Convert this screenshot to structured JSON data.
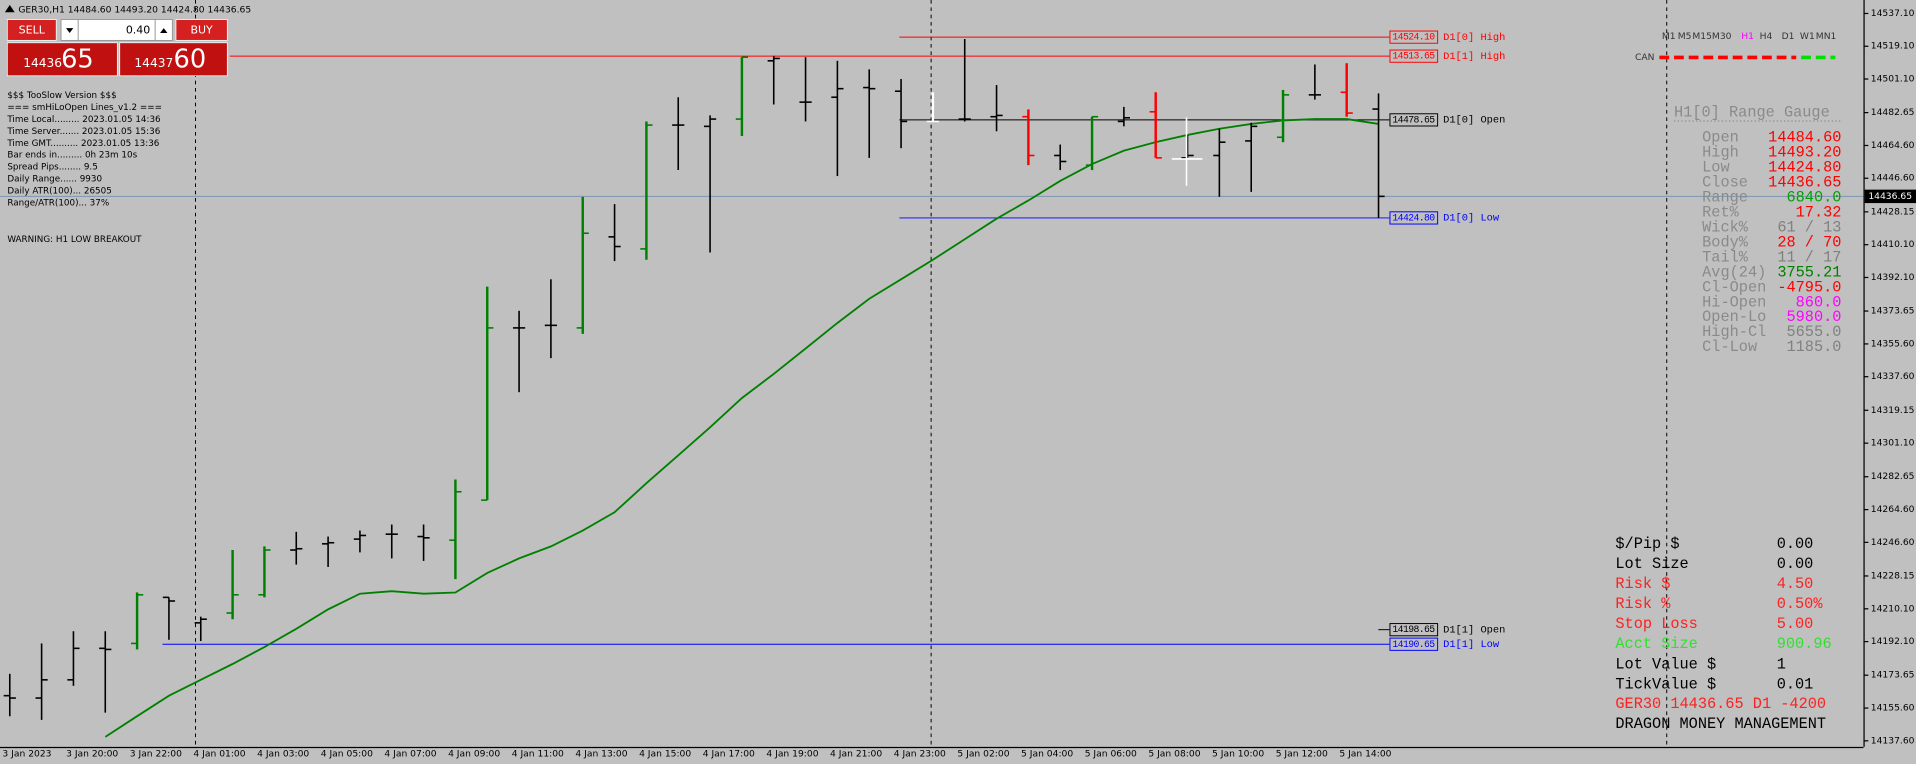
{
  "header": {
    "title": "GER30,H1  14484.60 14493.20 14424.80 14436.65"
  },
  "trade_panel": {
    "sell_label": "SELL",
    "buy_label": "BUY",
    "lot": "0.40",
    "bid_main": "14436",
    "bid_pips": "65",
    "ask_main": "14437",
    "ask_pips": "60"
  },
  "info_lines": [
    "$$$ TooSlow Version $$$",
    "=== smHiLoOpen Lines_v1.2 ===",
    "Time Local......... 2023.01.05 14:36",
    "Time Server....... 2023.01.05 15:36",
    "Time GMT.......... 2023.01.05 13:36",
    "Bar ends in......... 0h 23m 10s",
    "Spread Pips........ 9.5",
    "Daily Range...... 9930",
    "Daily ATR(100)... 26505",
    "Range/ATR(100)... 37%"
  ],
  "warning": "WARNING: H1 LOW BREAKOUT",
  "timeframes": {
    "items": [
      "M1",
      "M5",
      "M15",
      "M30",
      "H1",
      "H4",
      "D1",
      "W1",
      "MN1"
    ],
    "active": "H1"
  },
  "can_label": "CAN",
  "chart_data": {
    "type": "ohlc",
    "categories": [
      "3 Jan 2023",
      null,
      "3 Jan 20:00",
      null,
      "3 Jan 22:00",
      null,
      "4 Jan 01:00",
      null,
      "4 Jan 03:00",
      null,
      "4 Jan 05:00",
      null,
      "4 Jan 07:00",
      null,
      "4 Jan 09:00",
      null,
      "4 Jan 11:00",
      null,
      "4 Jan 13:00",
      null,
      "4 Jan 15:00",
      null,
      "4 Jan 17:00",
      null,
      "4 Jan 19:00",
      null,
      "4 Jan 21:00",
      null,
      "4 Jan 23:00",
      null,
      "5 Jan 02:00",
      null,
      "5 Jan 04:00",
      null,
      "5 Jan 06:00",
      null,
      "5 Jan 08:00",
      null,
      "5 Jan 10:00",
      null,
      "5 Jan 12:00",
      null,
      "5 Jan 14:00",
      null
    ],
    "open": [
      14162.4,
      14161.1,
      14171.1,
      14188.4,
      14191.1,
      14216.4,
      14202.4,
      14207.8,
      14217.8,
      14242.4,
      14245.8,
      14248.4,
      14251.1,
      14249.8,
      14247.8,
      14269.8,
      14364.4,
      14365.8,
      14364.4,
      14414.4,
      14407.8,
      14475.8,
      14475.1,
      14479.1,
      14511.1,
      14488.4,
      14491.1,
      14496.4,
      14494.4,
      14477.8,
      14479.1,
      14480.4,
      14480.4,
      14459.1,
      14453.8,
      14477.8,
      14483.1,
      14457.8,
      14459.1,
      14467.1,
      14469.1,
      14492.4,
      14493.8,
      14484.6
    ],
    "high": [
      14174.4,
      14191.1,
      14197.8,
      14197.8,
      14219.1,
      14216.4,
      14205.8,
      14242.4,
      14244.4,
      14252.4,
      14249.8,
      14253.1,
      14256.4,
      14256.4,
      14281.1,
      14387.1,
      14373.8,
      14391.1,
      14436.4,
      14432.4,
      14477.8,
      14491.1,
      14481.1,
      14513.1,
      14513.8,
      14513.1,
      14511.1,
      14506.4,
      14501.1,
      14493.8,
      14523.1,
      14497.8,
      14484.4,
      14465.1,
      14480.4,
      14485.8,
      14493.8,
      14470.4,
      14473.8,
      14477.1,
      14495.1,
      14509.1,
      14509.8,
      14493.2
    ],
    "low": [
      14151.1,
      14149.1,
      14167.8,
      14153.1,
      14187.8,
      14193.1,
      14192.4,
      14204.4,
      14216.4,
      14234.4,
      14233.1,
      14241.1,
      14237.8,
      14236.4,
      14226.4,
      14269.8,
      14329.1,
      14347.8,
      14361.1,
      14401.1,
      14401.8,
      14451.1,
      14405.8,
      14469.8,
      14487.1,
      14477.8,
      14447.8,
      14457.8,
      14463.1,
      14477.8,
      14477.8,
      14472.4,
      14453.8,
      14451.1,
      14451.1,
      14475.1,
      14457.8,
      14457.8,
      14436.4,
      14439.1,
      14466.4,
      14489.8,
      14480.4,
      14424.8
    ],
    "close": [
      14161.1,
      14171.1,
      14188.4,
      14187.8,
      14217.8,
      14214.4,
      14204.4,
      14217.8,
      14242.4,
      14243.1,
      14246.4,
      14250.4,
      14251.1,
      14249.1,
      14274.4,
      14364.4,
      14364.4,
      14365.8,
      14416.4,
      14409.1,
      14475.8,
      14475.8,
      14479.1,
      14513.1,
      14512.4,
      14488.4,
      14495.8,
      14495.8,
      14477.8,
      14477.8,
      14479.1,
      14481.1,
      14459.1,
      14455.8,
      14480.4,
      14479.8,
      14457.8,
      14459.1,
      14466.4,
      14475.1,
      14492.4,
      14492.4,
      14482.4,
      14436.65
    ],
    "bar_colors": [
      "#000000",
      "#000000",
      "#000000",
      "#000000",
      "#008000",
      "#000000",
      "#000000",
      "#008000",
      "#008000",
      "#000000",
      "#000000",
      "#000000",
      "#000000",
      "#000000",
      "#008000",
      "#008000",
      "#000000",
      "#000000",
      "#008000",
      "#000000",
      "#008000",
      "#000000",
      "#000000",
      "#008000",
      "#000000",
      "#000000",
      "#000000",
      "#000000",
      "#000000",
      "#ffffff",
      "#000000",
      "#000000",
      "#ff0000",
      "#000000",
      "#008000",
      "#000000",
      "#ff0000",
      "#000000",
      "#000000",
      "#000000",
      "#008000",
      "#000000",
      "#ff0000",
      "#000000"
    ],
    "ma": {
      "color": "#008000",
      "values": [
        null,
        null,
        null,
        14139.8,
        14151.1,
        14162.4,
        14171.1,
        14179.8,
        14189.1,
        14199.1,
        14209.8,
        14218.4,
        14219.8,
        14218.4,
        14219.1,
        14229.8,
        14237.8,
        14244.4,
        14253.1,
        14263.1,
        14279.1,
        14294.4,
        14309.8,
        14325.8,
        14339.1,
        14353.1,
        14367.1,
        14380.4,
        14391.1,
        14401.8,
        14413.1,
        14424.4,
        14434.4,
        14445.1,
        14454.4,
        14461.8,
        14466.4,
        14470.4,
        14473.8,
        14476.4,
        14478.4,
        14479.1,
        14479.1,
        14476.4
      ]
    },
    "ylim": [
      14133.6,
      14544.5
    ],
    "yticks": [
      {
        "value": 14537.1,
        "label": "14537.10"
      },
      {
        "value": 14519.1,
        "label": "14519.10"
      },
      {
        "value": 14501.1,
        "label": "14501.10"
      },
      14482.65,
      {
        "value": 14464.6,
        "label": "14464.60"
      },
      {
        "value": 14446.6,
        "label": "14446.60"
      },
      14428.15,
      {
        "value": 14410.1,
        "label": "14410.10"
      },
      {
        "value": 14392.1,
        "label": "14392.10"
      },
      14373.65,
      {
        "value": 14355.6,
        "label": "14355.60"
      },
      {
        "value": 14337.6,
        "label": "14337.60"
      },
      14319.15,
      {
        "value": 14301.1,
        "label": "14301.10"
      },
      14282.65,
      {
        "value": 14264.6,
        "label": "14264.60"
      },
      {
        "value": 14246.6,
        "label": "14246.60"
      },
      14228.15,
      {
        "value": 14210.1,
        "label": "14210.10"
      },
      {
        "value": 14192.1,
        "label": "14192.10"
      },
      14173.65,
      {
        "value": 14155.6,
        "label": "14155.60"
      },
      {
        "value": 14137.6,
        "label": "14137.60"
      }
    ],
    "last_price": 14436.65,
    "levels": [
      {
        "name": "D1[0] High",
        "value": 14524.1,
        "label": "14524.10",
        "color": "#ff0000"
      },
      {
        "name": "D1[1] High",
        "value": 14513.65,
        "label": "14513.65",
        "color": "#ff0000"
      },
      {
        "name": "D1[0] Open",
        "value": 14478.65,
        "label": "14478.65",
        "color": "#000000"
      },
      {
        "name": "D1[0] Low",
        "value": 14424.8,
        "label": "14424.80",
        "color": "#0000ff"
      },
      {
        "name": "D1[1] Open",
        "value": 14198.65,
        "label": "14198.65",
        "color": "#000000"
      },
      {
        "name": "D1[1] Low",
        "value": 14190.65,
        "label": "14190.65",
        "color": "#0000ff"
      }
    ]
  },
  "gauge": {
    "title": "H1[0] Range Gauge",
    "rows": [
      {
        "label": "Open",
        "value": "14484.60",
        "color": "#ff0000"
      },
      {
        "label": "High",
        "value": "14493.20",
        "color": "#ff0000"
      },
      {
        "label": "Low",
        "value": "14424.80",
        "color": "#ff0000"
      },
      {
        "label": "Close",
        "value": "14436.65",
        "color": "#ff0000"
      },
      {
        "label": "Range",
        "value": "6840.0",
        "color": "#00a000"
      },
      {
        "label": "Ret%",
        "value": "17.32",
        "color": "#ff0000"
      },
      {
        "label": "Wick%",
        "value": "61 / 13",
        "color": "#808080"
      },
      {
        "label": "Body%",
        "value": "28 / 70",
        "color": "#ff0000"
      },
      {
        "label": "Tail%",
        "value": "11 / 17",
        "color": "#808080"
      },
      {
        "label": "Avg(24)",
        "value": "3755.21",
        "color": "#008000"
      },
      {
        "label": "Cl-Open",
        "value": "-4795.0",
        "color": "#ff0000"
      },
      {
        "label": "Hi-Open",
        "value": "860.0",
        "color": "#ff00ff"
      },
      {
        "label": "Open-Lo",
        "value": "5980.0",
        "color": "#ff00ff"
      },
      {
        "label": "High-Cl",
        "value": "5655.0",
        "color": "#808080"
      },
      {
        "label": "Cl-Low",
        "value": "1185.0",
        "color": "#808080"
      }
    ]
  },
  "money_management": {
    "rows": [
      {
        "label": "$/Pip $",
        "value": "0.00",
        "color": "#000000"
      },
      {
        "label": "Lot Size",
        "value": "0.00",
        "color": "#000000"
      },
      {
        "label": "Risk $",
        "value": "4.50",
        "color": "#ff2020"
      },
      {
        "label": "Risk %",
        "value": "0.50%",
        "color": "#ff2020"
      },
      {
        "label": "Stop Loss",
        "value": "5.00",
        "color": "#ff2020"
      },
      {
        "label": "Acct Size",
        "value": "900.96",
        "color": "#30e030"
      },
      {
        "label": "Lot Value $",
        "value": "1",
        "color": "#000000"
      },
      {
        "label": "TickValue $",
        "value": "0.01",
        "color": "#000000"
      }
    ],
    "footer": [
      {
        "text": "GER30 14436.65 D1 -4200",
        "color": "#ff2020"
      },
      {
        "text": "DRAGON MONEY MANAGEMENT",
        "color": "#000000"
      }
    ]
  }
}
